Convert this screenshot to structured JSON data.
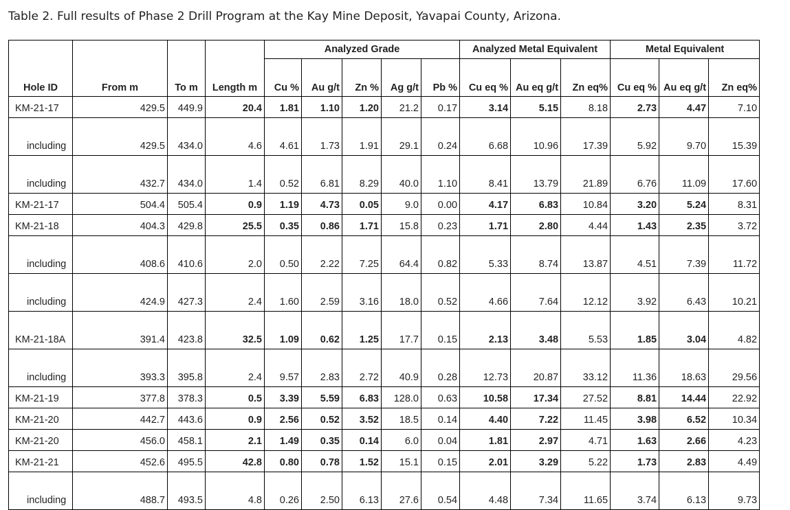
{
  "title": "Table 2. Full results of Phase 2 Drill Program at the Kay Mine Deposit, Yavapai County, Arizona.",
  "groups": [
    "Analyzed Grade",
    "Analyzed Metal Equivalent",
    "Metal Equivalent"
  ],
  "columns": [
    "Hole ID",
    "From m",
    "To m",
    "Length m",
    "Cu %",
    "Au g/t",
    "Zn %",
    "Ag g/t",
    "Pb %",
    "Cu eq %",
    "Au eq g/t",
    "Zn eq%",
    "Cu eq %",
    "Au eq g/t",
    "Zn eq%"
  ],
  "rows": [
    [
      "KM-21-17",
      "429.5",
      "449.9",
      "20.4",
      "1.81",
      "1.10",
      "1.20",
      "21.2",
      "0.17",
      "3.14",
      "5.15",
      "8.18",
      "2.73",
      "4.47",
      "7.10"
    ],
    [
      "including",
      "429.5",
      "434.0",
      "4.6",
      "4.61",
      "1.73",
      "1.91",
      "29.1",
      "0.24",
      "6.68",
      "10.96",
      "17.39",
      "5.92",
      "9.70",
      "15.39"
    ],
    [
      "including",
      "432.7",
      "434.0",
      "1.4",
      "0.52",
      "6.81",
      "8.29",
      "40.0",
      "1.10",
      "8.41",
      "13.79",
      "21.89",
      "6.76",
      "11.09",
      "17.60"
    ],
    [
      "KM-21-17",
      "504.4",
      "505.4",
      "0.9",
      "1.19",
      "4.73",
      "0.05",
      "9.0",
      "0.00",
      "4.17",
      "6.83",
      "10.84",
      "3.20",
      "5.24",
      "8.31"
    ],
    [
      "KM-21-18",
      "404.3",
      "429.8",
      "25.5",
      "0.35",
      "0.86",
      "1.71",
      "15.8",
      "0.23",
      "1.71",
      "2.80",
      "4.44",
      "1.43",
      "2.35",
      "3.72"
    ],
    [
      "including",
      "408.6",
      "410.6",
      "2.0",
      "0.50",
      "2.22",
      "7.25",
      "64.4",
      "0.82",
      "5.33",
      "8.74",
      "13.87",
      "4.51",
      "7.39",
      "11.72"
    ],
    [
      "including",
      "424.9",
      "427.3",
      "2.4",
      "1.60",
      "2.59",
      "3.16",
      "18.0",
      "0.52",
      "4.66",
      "7.64",
      "12.12",
      "3.92",
      "6.43",
      "10.21"
    ],
    [
      "KM-21-18A",
      "391.4",
      "423.8",
      "32.5",
      "1.09",
      "0.62",
      "1.25",
      "17.7",
      "0.15",
      "2.13",
      "3.48",
      "5.53",
      "1.85",
      "3.04",
      "4.82"
    ],
    [
      "including",
      "393.3",
      "395.8",
      "2.4",
      "9.57",
      "2.83",
      "2.72",
      "40.9",
      "0.28",
      "12.73",
      "20.87",
      "33.12",
      "11.36",
      "18.63",
      "29.56"
    ],
    [
      "KM-21-19",
      "377.8",
      "378.3",
      "0.5",
      "3.39",
      "5.59",
      "6.83",
      "128.0",
      "0.63",
      "10.58",
      "17.34",
      "27.52",
      "8.81",
      "14.44",
      "22.92"
    ],
    [
      "KM-21-20",
      "442.7",
      "443.6",
      "0.9",
      "2.56",
      "0.52",
      "3.52",
      "18.5",
      "0.14",
      "4.40",
      "7.22",
      "11.45",
      "3.98",
      "6.52",
      "10.34"
    ],
    [
      "KM-21-20",
      "456.0",
      "458.1",
      "2.1",
      "1.49",
      "0.35",
      "0.14",
      "6.0",
      "0.04",
      "1.81",
      "2.97",
      "4.71",
      "1.63",
      "2.66",
      "4.23"
    ],
    [
      "KM-21-21",
      "452.6",
      "495.5",
      "42.8",
      "0.80",
      "0.78",
      "1.52",
      "15.1",
      "0.15",
      "2.01",
      "3.29",
      "5.22",
      "1.73",
      "2.83",
      "4.49"
    ],
    [
      "including",
      "488.7",
      "493.5",
      "4.8",
      "0.26",
      "2.50",
      "6.13",
      "27.6",
      "0.54",
      "4.48",
      "7.34",
      "11.65",
      "3.74",
      "6.13",
      "9.73"
    ]
  ]
}
